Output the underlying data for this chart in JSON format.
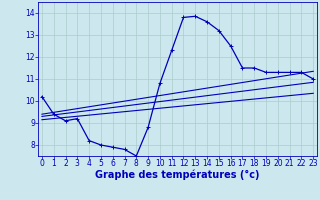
{
  "xlabel": "Graphe des températures (°c)",
  "hours": [
    0,
    1,
    2,
    3,
    4,
    5,
    6,
    7,
    8,
    9,
    10,
    11,
    12,
    13,
    14,
    15,
    16,
    17,
    18,
    19,
    20,
    21,
    22,
    23
  ],
  "temp_main": [
    10.2,
    9.4,
    9.1,
    9.2,
    8.2,
    8.0,
    7.9,
    7.8,
    7.5,
    8.8,
    10.8,
    12.3,
    13.8,
    13.85,
    13.6,
    13.2,
    12.5,
    11.5,
    11.5,
    11.3,
    11.3,
    11.3,
    11.3,
    11.0
  ],
  "trend_lines": [
    {
      "x": [
        0,
        23
      ],
      "y": [
        9.4,
        11.35
      ]
    },
    {
      "x": [
        0,
        23
      ],
      "y": [
        9.3,
        10.85
      ]
    },
    {
      "x": [
        0,
        23
      ],
      "y": [
        9.15,
        10.35
      ]
    }
  ],
  "ylim": [
    7.5,
    14.5
  ],
  "xlim": [
    -0.3,
    23.3
  ],
  "yticks": [
    8,
    9,
    10,
    11,
    12,
    13,
    14
  ],
  "xticks": [
    0,
    1,
    2,
    3,
    4,
    5,
    6,
    7,
    8,
    9,
    10,
    11,
    12,
    13,
    14,
    15,
    16,
    17,
    18,
    19,
    20,
    21,
    22,
    23
  ],
  "line_color": "#0000bb",
  "bg_color": "#cce8ee",
  "grid_color": "#aacccc",
  "xlabel_fontsize": 7,
  "tick_fontsize": 5.5,
  "marker": "+"
}
